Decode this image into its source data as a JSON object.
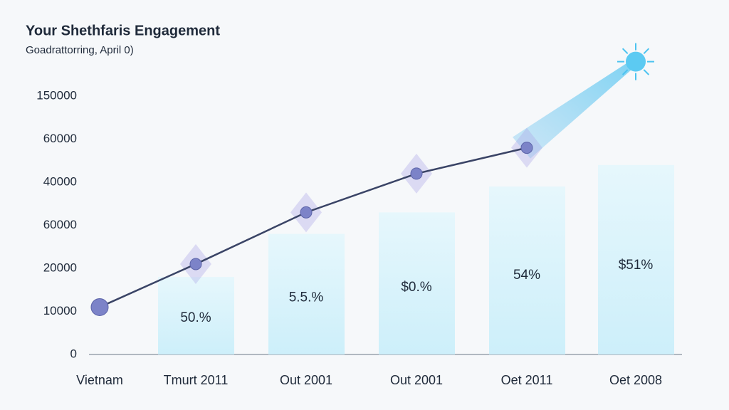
{
  "chart_data": {
    "type": "bar_line",
    "title": "Your Shethfaris Engagement",
    "subtitle": "Goadrattorring, April 0)",
    "categories": [
      "Vietnam",
      "Tmurt 2011",
      "Out 2001",
      "Out 2001",
      "Oet 2011",
      "Oet 2008"
    ],
    "ylim": [
      0,
      7
    ],
    "yticks": [
      {
        "value": 0,
        "label": "0"
      },
      {
        "value": 1,
        "label": "10000"
      },
      {
        "value": 2,
        "label": "20000"
      },
      {
        "value": 3,
        "label": "60000"
      },
      {
        "value": 4,
        "label": "40000"
      },
      {
        "value": 5,
        "label": "60000"
      },
      {
        "value": 6,
        "label": "150000"
      }
    ],
    "bars": {
      "color": "#d6f2fa",
      "values": [
        null,
        1.8,
        2.8,
        3.3,
        3.9,
        4.4
      ],
      "labels": [
        null,
        "50.%",
        "5.5.%",
        "$0.%",
        "54%",
        "$51%"
      ]
    },
    "line": {
      "color": "#3a4466",
      "marker_color": "#7c83c8",
      "values": [
        1.1,
        2.1,
        3.3,
        4.2,
        4.8,
        6.8
      ]
    }
  }
}
